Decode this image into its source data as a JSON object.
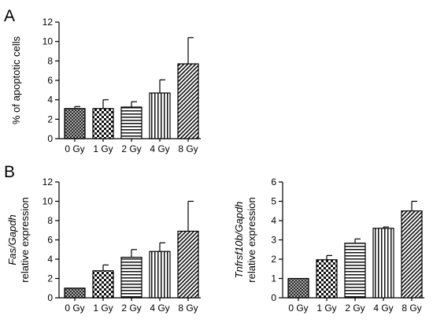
{
  "panel_labels": [
    "A",
    "B"
  ],
  "chart_data": [
    {
      "type": "bar",
      "categories": [
        "0 Gy",
        "1 Gy",
        "2 Gy",
        "4 Gy",
        "8 Gy"
      ],
      "values": [
        3.1,
        3.1,
        3.25,
        4.7,
        7.7
      ],
      "errors": [
        0.2,
        0.9,
        0.55,
        1.35,
        2.7
      ],
      "ylabel": "% of apoptotic cells",
      "ylabel_parts": [
        "% of apoptotic cells"
      ],
      "ylim": [
        0,
        12
      ],
      "yticks": [
        0,
        2,
        4,
        6,
        8,
        10,
        12
      ],
      "patterns": [
        "crosshatch",
        "checker",
        "horizontal",
        "vertical",
        "diagonal"
      ]
    },
    {
      "type": "bar",
      "categories": [
        "0 Gy",
        "1 Gy",
        "2 Gy",
        "4 Gy",
        "8 Gy"
      ],
      "values": [
        1.0,
        2.8,
        4.2,
        4.8,
        6.9
      ],
      "errors": [
        0.0,
        0.6,
        0.8,
        0.9,
        3.1
      ],
      "ylabel": "Fas/Gapdh relative expression",
      "ylabel_parts": [
        "Fas/Gapdh",
        "relative expression"
      ],
      "ylim": [
        0,
        12
      ],
      "yticks": [
        0,
        2,
        4,
        6,
        8,
        10,
        12
      ],
      "patterns": [
        "crosshatch",
        "checker",
        "horizontal",
        "vertical",
        "diagonal"
      ]
    },
    {
      "type": "bar",
      "categories": [
        "0 Gy",
        "1 Gy",
        "2 Gy",
        "4 Gy",
        "8 Gy"
      ],
      "values": [
        1.0,
        1.97,
        2.83,
        3.6,
        4.5
      ],
      "errors": [
        0.0,
        0.22,
        0.22,
        0.07,
        0.5
      ],
      "ylabel": "Tnfrsf10b/Gapdh relative expression",
      "ylabel_parts": [
        "Tnfrsf10b/Gapdh",
        "relative expression"
      ],
      "ylim": [
        0,
        6
      ],
      "yticks": [
        0,
        1,
        2,
        3,
        4,
        5,
        6
      ],
      "patterns": [
        "crosshatch",
        "checker",
        "horizontal",
        "vertical",
        "diagonal"
      ]
    }
  ]
}
